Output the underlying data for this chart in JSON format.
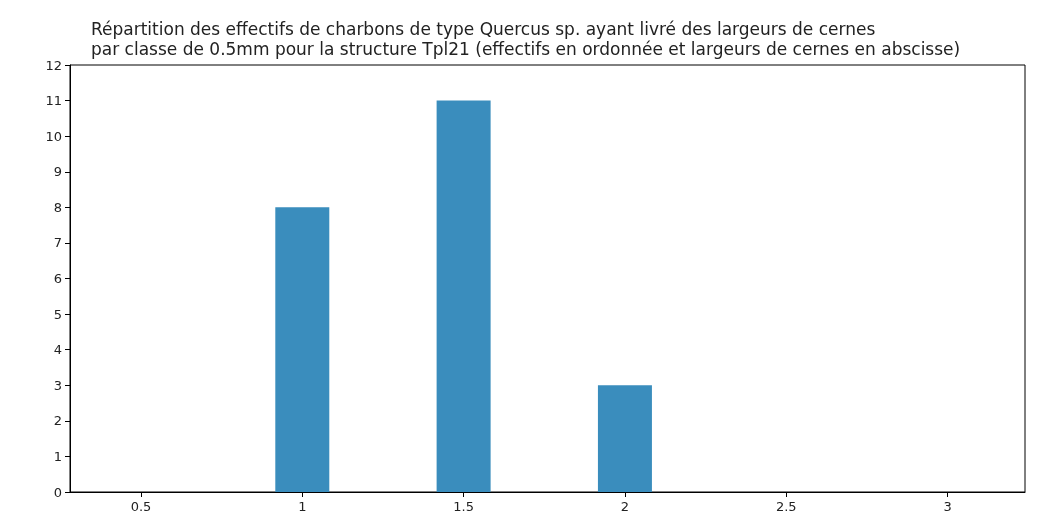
{
  "chart_data": {
    "type": "bar",
    "title": "Répartition des effectifs de charbons de type Quercus sp. ayant livré des largeurs de cernes\npar classe de 0.5mm pour la structure Tpl21 (effectifs en ordonnée et largeurs de cernes en abscisse)",
    "x": [
      0.5,
      1,
      1.5,
      2,
      2.5,
      3
    ],
    "values": [
      0,
      8,
      11,
      3,
      0,
      0
    ],
    "color": "#3a8dbd",
    "xlim": [
      0.28,
      3.24
    ],
    "xticks": [
      0.5,
      1,
      1.5,
      2,
      2.5,
      3
    ],
    "ylim": [
      0,
      12
    ],
    "yticks": [
      0,
      1,
      2,
      3,
      4,
      5,
      6,
      7,
      8,
      9,
      10,
      11,
      12
    ],
    "grid": false
  }
}
